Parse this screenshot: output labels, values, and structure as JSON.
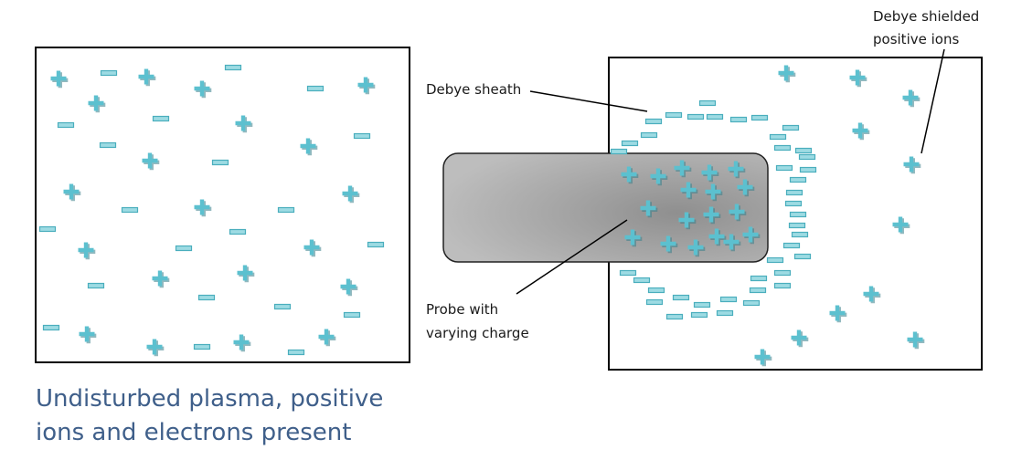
{
  "labels": {
    "debye_sheath": "Debye sheath",
    "shielded_line1": "Debye shielded",
    "shielded_line2": "positive ions",
    "probe_line1": "Probe with",
    "probe_line2": "varying charge"
  },
  "caption": {
    "line1": "Undisturbed plasma, positive",
    "line2": "ions and electrons present"
  },
  "colors": {
    "ion_fill": "#5cc0cf",
    "ion_shadow": "#3a7f8a",
    "electron_fill": "#9ddbe3",
    "electron_border": "#4aaebd",
    "caption": "#3f5f8a",
    "probe_dark": "#8f8f8f",
    "probe_light": "#b8b8b8"
  },
  "legend_items": {
    "ion_symbol": "positive-ion-icon",
    "electron_symbol": "electron-icon"
  }
}
